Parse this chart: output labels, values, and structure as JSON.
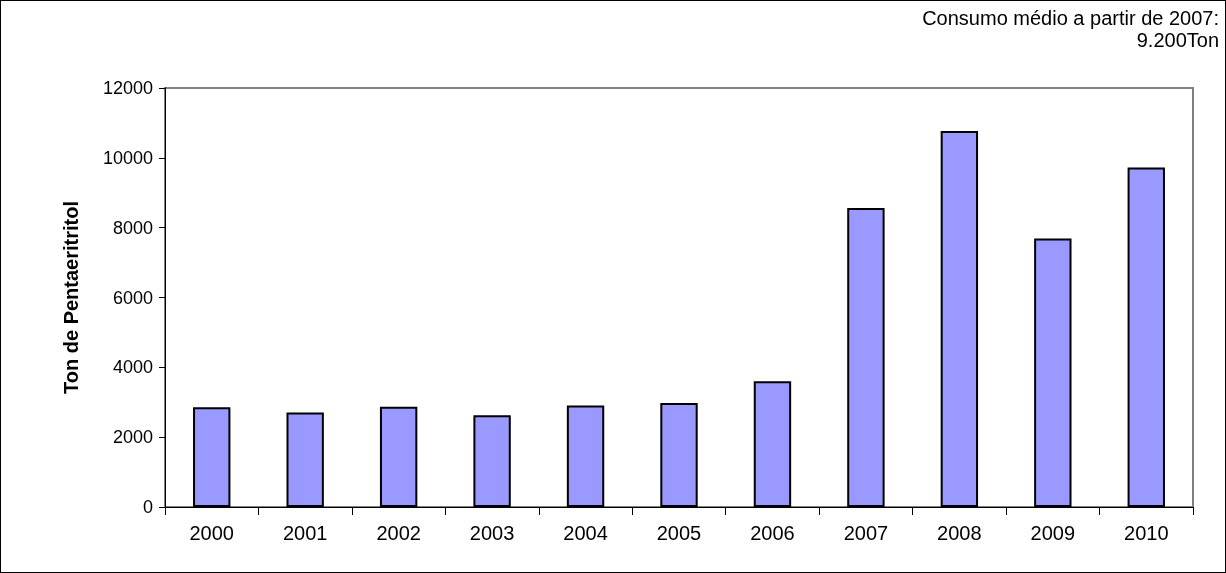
{
  "chart_data": {
    "type": "bar",
    "ylabel": "Ton de Pentaeritritol",
    "annotations": [
      "Consumo médio a partir de 2007:\n9.200Ton"
    ],
    "categories": [
      "2000",
      "2001",
      "2002",
      "2003",
      "2004",
      "2005",
      "2006",
      "2007",
      "2008",
      "2009",
      "2010"
    ],
    "values": [
      2860,
      2710,
      2870,
      2630,
      2910,
      2980,
      3600,
      8560,
      10770,
      7690,
      9720
    ],
    "color": "#9999ff",
    "ylim": [
      0,
      12000
    ],
    "yticks": [
      0,
      2000,
      4000,
      6000,
      8000,
      10000,
      12000
    ],
    "grid": false
  }
}
